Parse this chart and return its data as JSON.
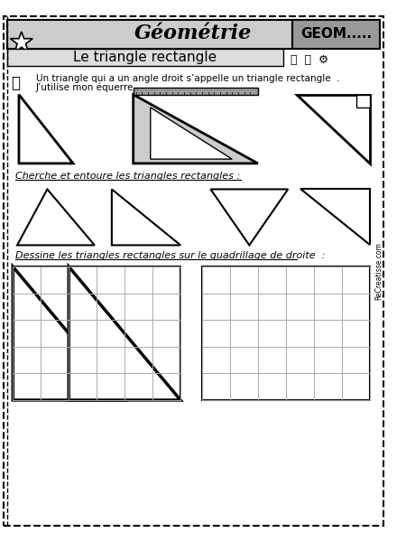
{
  "title": "Géométrie",
  "subtitle": "Le triangle rectangle",
  "geom_label": "GEOM.....",
  "text1": "Un triangle qui a un angle droit s’appelle un triangle rectangle  .",
  "text2": "J’utilise mon équerre .",
  "section1": "Cherche et entoure les triangles rectangles :",
  "section2": "Dessine les triangles rectangles sur le quadrillage de droite  :",
  "bg_color": "#ffffff",
  "border_color": "#000000",
  "header_bg": "#d0d0d0",
  "subheader_bg": "#e0e0e0",
  "geom_bg": "#b0b0b0",
  "grid_color": "#aaaaaa"
}
